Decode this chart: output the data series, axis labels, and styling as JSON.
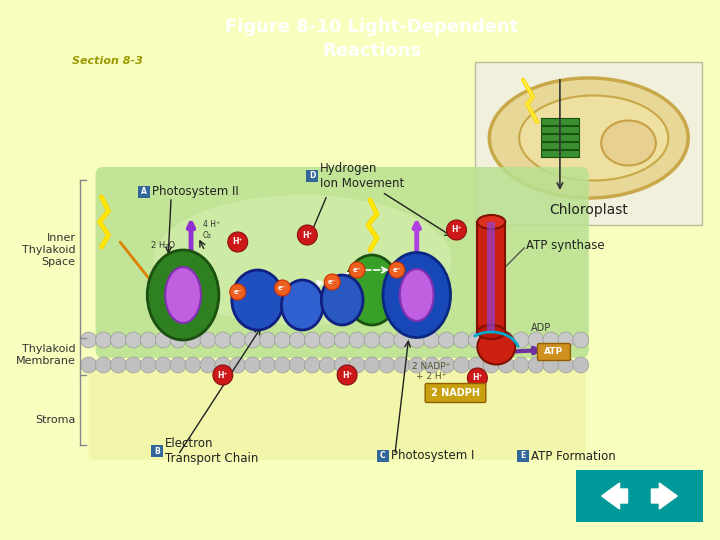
{
  "bg_color": "#F8FFBE",
  "title": "Figure 8-10 Light-Dependent\nReactions",
  "title_color": "#FFFFFF",
  "title_fontsize": 13,
  "subtitle": "Section 8-3",
  "subtitle_color": "#999900",
  "subtitle_fontsize": 8,
  "label_box_color": "#336699",
  "labels": {
    "A": "Photosystem II",
    "B": "Electron\nTransport Chain",
    "C": "Photosystem I",
    "D": "Hydrogen\nIon Movement",
    "E": "ATP Formation"
  },
  "side_labels": [
    "Inner\nThylakoid\nSpace",
    "Thylakoid\nMembrane",
    "Stroma"
  ],
  "chloroplast_label": "Chloroplast",
  "atp_synthase_label": "ATP synthase",
  "nav_box_color": "#009999"
}
